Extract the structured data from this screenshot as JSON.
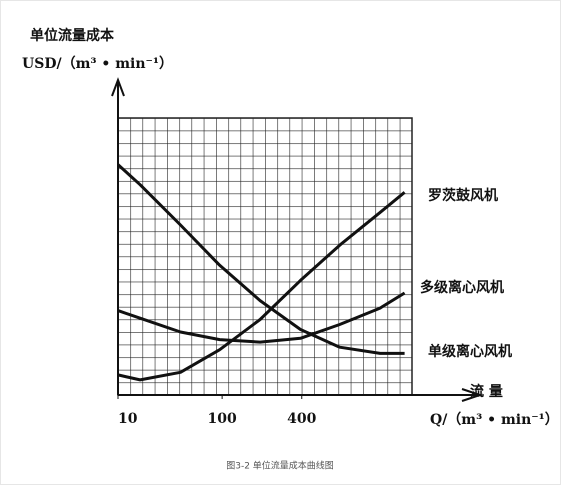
{
  "chart_data": {
    "type": "line",
    "y_label": "单位流量成本",
    "y_unit": "USD/（m³ • min⁻¹）",
    "x_label": "流 量",
    "x_unit": "Q/（m³ • min⁻¹）",
    "caption": "图3-2  单位流量成本曲线图",
    "xlim": [
      0,
      24
    ],
    "ylim": [
      0,
      22
    ],
    "xticks": [
      {
        "value": 0,
        "label": "10"
      },
      {
        "value": 8.5,
        "label": "100"
      },
      {
        "value": 15,
        "label": "400"
      }
    ],
    "x": [
      0,
      1.8,
      5.1,
      8.3,
      11.6,
      14.9,
      18.1,
      21.4,
      23.4
    ],
    "series": [
      {
        "name": "罗茨鼓风机",
        "color": "#111111",
        "values": [
          1.6,
          1.2,
          1.8,
          3.6,
          6.0,
          9.1,
          11.9,
          14.5,
          16.1
        ]
      },
      {
        "name": "多级离心风机",
        "color": "#111111",
        "values": [
          6.7,
          6.1,
          5.0,
          4.4,
          4.2,
          4.5,
          5.6,
          6.9,
          8.1
        ]
      },
      {
        "name": "单级离心风机",
        "color": "#111111",
        "values": [
          18.3,
          16.7,
          13.5,
          10.3,
          7.5,
          5.2,
          3.8,
          3.3,
          3.3
        ]
      }
    ]
  }
}
